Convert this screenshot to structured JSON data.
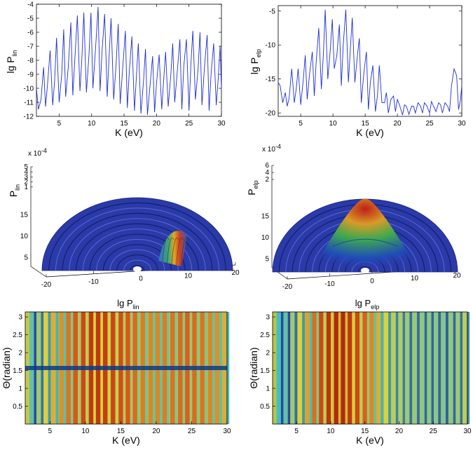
{
  "figure": {
    "panels": {
      "a": {
        "ylabel": "lg P",
        "ysub": "lin",
        "xlabel": "K (eV)"
      },
      "b": {
        "ylabel": "lg P",
        "ysub": "elp",
        "xlabel": "K (eV)"
      },
      "c": {
        "zlabel": "P",
        "zsub": "lin",
        "exponent": "x 10",
        "exponent_power": "-4"
      },
      "d": {
        "zlabel": "P",
        "zsub": "elp",
        "exponent": "x 10",
        "exponent_power": "-4"
      },
      "e": {
        "title": "lg P",
        "title_sub": "lin",
        "xlabel": "K (eV)",
        "ylabel": "Θ(radian)"
      },
      "f": {
        "title": "lg P",
        "title_sub": "elp",
        "xlabel": "K (eV)",
        "ylabel": "Θ(radian)"
      }
    }
  },
  "chart_data": [
    {
      "type": "line",
      "title": "",
      "xlabel": "K (eV)",
      "ylabel": "lg P_lin",
      "xlim": [
        1.5,
        30
      ],
      "ylim": [
        -12,
        -4
      ],
      "xticks": [
        5,
        10,
        15,
        20,
        25,
        30
      ],
      "yticks": [
        -4,
        -5,
        -6,
        -7,
        -8,
        -9,
        -10,
        -11,
        -12
      ],
      "color": "#1f2fd6",
      "series": [
        {
          "name": "lg P_lin",
          "x": [
            1.5,
            1.8,
            2.2,
            2.6,
            2.9,
            3.2,
            3.6,
            4.0,
            4.3,
            4.6,
            5.0,
            5.4,
            5.7,
            6.0,
            6.4,
            6.8,
            7.1,
            7.4,
            7.8,
            8.2,
            8.5,
            8.8,
            9.2,
            9.6,
            9.9,
            10.2,
            10.6,
            11.0,
            11.3,
            11.6,
            12.0,
            12.4,
            12.7,
            13.0,
            13.4,
            13.8,
            14.1,
            14.4,
            14.8,
            15.2,
            15.5,
            15.8,
            16.2,
            16.6,
            16.9,
            17.2,
            17.6,
            18.0,
            18.3,
            18.6,
            19.0,
            19.4,
            19.7,
            20.0,
            20.4,
            20.8,
            21.1,
            21.4,
            21.8,
            22.2,
            22.5,
            22.8,
            23.2,
            23.6,
            23.9,
            24.2,
            24.6,
            25.0,
            25.3,
            25.6,
            26.0,
            26.4,
            26.7,
            27.0,
            27.4,
            27.8,
            28.1,
            28.4,
            28.8,
            29.2,
            29.5,
            29.8,
            30.0
          ],
          "values": [
            -10.0,
            -11.5,
            -10.8,
            -8.5,
            -11.3,
            -9.8,
            -7.3,
            -11.2,
            -9.5,
            -6.4,
            -11.0,
            -9.0,
            -5.8,
            -10.6,
            -8.5,
            -5.3,
            -10.5,
            -8.0,
            -4.8,
            -10.2,
            -7.9,
            -4.6,
            -10.3,
            -7.6,
            -4.6,
            -10.0,
            -7.2,
            -4.2,
            -10.2,
            -7.4,
            -4.7,
            -10.6,
            -7.7,
            -5.0,
            -10.8,
            -8.1,
            -5.4,
            -11.1,
            -8.5,
            -5.9,
            -11.4,
            -8.8,
            -6.3,
            -11.6,
            -9.1,
            -6.8,
            -11.8,
            -9.5,
            -7.2,
            -11.9,
            -9.8,
            -7.7,
            -11.7,
            -9.6,
            -7.6,
            -11.5,
            -9.4,
            -7.4,
            -11.3,
            -9.1,
            -6.8,
            -11.0,
            -8.8,
            -6.5,
            -11.5,
            -8.4,
            -6.5,
            -11.6,
            -8.2,
            -5.9,
            -10.8,
            -8.6,
            -6.0,
            -11.2,
            -8.4,
            -6.2,
            -11.6,
            -9.0,
            -6.8,
            -11.2,
            -9.3,
            -7.0,
            -10.1
          ]
        }
      ]
    },
    {
      "type": "line",
      "title": "",
      "xlabel": "K (eV)",
      "ylabel": "lg P_elp",
      "xlim": [
        1.5,
        30
      ],
      "ylim": [
        -20.5,
        -4.2
      ],
      "xticks": [
        5,
        10,
        15,
        20,
        25,
        30
      ],
      "yticks": [
        -5,
        -10,
        -15,
        -20
      ],
      "color": "#1f2fd6",
      "series": [
        {
          "name": "lg P_elp",
          "x": [
            1.5,
            1.8,
            2.2,
            2.6,
            2.9,
            3.2,
            3.6,
            4.0,
            4.3,
            4.6,
            5.0,
            5.4,
            5.7,
            6.0,
            6.4,
            6.8,
            7.1,
            7.4,
            7.8,
            8.2,
            8.5,
            8.8,
            9.2,
            9.6,
            9.9,
            10.2,
            10.6,
            11.0,
            11.3,
            11.6,
            12.0,
            12.4,
            12.7,
            13.0,
            13.4,
            13.8,
            14.1,
            14.4,
            14.8,
            15.2,
            15.5,
            15.8,
            16.2,
            16.6,
            16.9,
            17.2,
            17.6,
            18.0,
            18.3,
            18.6,
            19.0,
            19.4,
            19.7,
            20.0,
            20.4,
            20.8,
            21.1,
            21.4,
            21.8,
            22.2,
            22.5,
            22.8,
            23.2,
            23.6,
            23.9,
            24.2,
            24.6,
            25.0,
            25.3,
            25.6,
            26.0,
            26.4,
            26.7,
            27.0,
            27.4,
            27.8,
            28.1,
            28.4,
            28.8,
            29.2,
            29.5,
            29.8,
            30.0
          ],
          "values": [
            -15.5,
            -16.0,
            -18.5,
            -17.0,
            -19.0,
            -17.8,
            -13.5,
            -18.5,
            -16.5,
            -13.5,
            -18.8,
            -15.0,
            -11.5,
            -18.0,
            -14.0,
            -11.0,
            -17.5,
            -12.5,
            -7.5,
            -16.5,
            -11.5,
            -4.8,
            -15.0,
            -10.5,
            -6.2,
            -13.5,
            -11.5,
            -7.0,
            -16.0,
            -10.0,
            -4.8,
            -15.5,
            -10.5,
            -6.0,
            -15.5,
            -11.5,
            -9.0,
            -18.5,
            -14.0,
            -11.0,
            -19.5,
            -15.5,
            -13.0,
            -19.8,
            -17.5,
            -13.0,
            -18.5,
            -18.5,
            -17.0,
            -20.0,
            -18.0,
            -17.5,
            -19.8,
            -18.0,
            -19.0,
            -20.3,
            -18.8,
            -19.0,
            -20.2,
            -19.0,
            -19.0,
            -20.0,
            -18.5,
            -19.0,
            -20.0,
            -18.5,
            -19.0,
            -20.0,
            -18.3,
            -19.0,
            -19.8,
            -18.5,
            -18.8,
            -20.0,
            -18.5,
            -19.0,
            -19.8,
            -16.0,
            -13.5,
            -14.5,
            -19.5,
            -18.0,
            -16.0
          ]
        }
      ]
    },
    {
      "type": "surface-3d",
      "zlabel": "P_lin",
      "z_exponent": "x 10^-4",
      "x_ticks": [
        -20,
        -10,
        0,
        10,
        20
      ],
      "y_ticks": [
        5,
        10,
        15
      ],
      "z_ticks": [
        1,
        2,
        3,
        4,
        5
      ],
      "ring_count": 14,
      "peak": "narrow ridge near x = 10"
    },
    {
      "type": "surface-3d",
      "zlabel": "P_elp",
      "z_exponent": "x 10^-4",
      "x_ticks": [
        -20,
        -10,
        0,
        10,
        20
      ],
      "y_ticks": [
        5,
        10,
        15
      ],
      "z_ticks": [
        2,
        4,
        6
      ],
      "ring_count": 14,
      "peak": "broad central mound"
    },
    {
      "type": "heatmap",
      "title": "lg P_lin",
      "xlabel": "K (eV)",
      "ylabel": "Θ(radian)",
      "xlim": [
        1.5,
        30
      ],
      "ylim": [
        0,
        3.14
      ],
      "xticks": [
        5,
        10,
        15,
        20,
        25,
        30
      ],
      "yticks": [
        0.5,
        1,
        1.5,
        2,
        2.5,
        3
      ],
      "stripe_centers": [
        2.6,
        3.6,
        4.6,
        5.7,
        6.8,
        7.8,
        8.8,
        9.9,
        11.0,
        12.0,
        13.0,
        14.1,
        15.2,
        16.2,
        17.2,
        18.3,
        19.4,
        20.4,
        21.4,
        22.5,
        23.6,
        24.6,
        25.6,
        26.7,
        27.8,
        28.8,
        29.8
      ],
      "stripe_strength": [
        0.35,
        0.45,
        0.55,
        0.62,
        0.68,
        0.74,
        0.8,
        0.85,
        0.9,
        0.9,
        0.88,
        0.86,
        0.83,
        0.8,
        0.76,
        0.72,
        0.7,
        0.7,
        0.72,
        0.74,
        0.76,
        0.78,
        0.76,
        0.74,
        0.7,
        0.68,
        0.62
      ],
      "minimum_band_theta": 1.57
    },
    {
      "type": "heatmap",
      "title": "lg P_elp",
      "xlabel": "K (eV)",
      "ylabel": "Θ(radian)",
      "xlim": [
        1.5,
        30
      ],
      "ylim": [
        0,
        3.14
      ],
      "xticks": [
        5,
        10,
        15,
        20,
        25,
        30
      ],
      "yticks": [
        0.5,
        1,
        1.5,
        2,
        2.5,
        3
      ],
      "stripe_centers": [
        2.6,
        3.6,
        4.6,
        5.7,
        6.8,
        7.8,
        8.8,
        9.9,
        11.0,
        12.0,
        13.0,
        14.1,
        15.2,
        16.2,
        17.2,
        18.3,
        19.4,
        20.4,
        21.4,
        22.5,
        23.6,
        24.6,
        25.6,
        26.7,
        27.8,
        28.8,
        29.8
      ],
      "stripe_strength": [
        0.3,
        0.35,
        0.45,
        0.55,
        0.65,
        0.75,
        0.85,
        0.92,
        0.95,
        0.95,
        0.9,
        0.85,
        0.78,
        0.7,
        0.62,
        0.55,
        0.5,
        0.48,
        0.45,
        0.44,
        0.42,
        0.42,
        0.42,
        0.4,
        0.42,
        0.45,
        0.5
      ],
      "minimum_band_theta": null
    }
  ]
}
